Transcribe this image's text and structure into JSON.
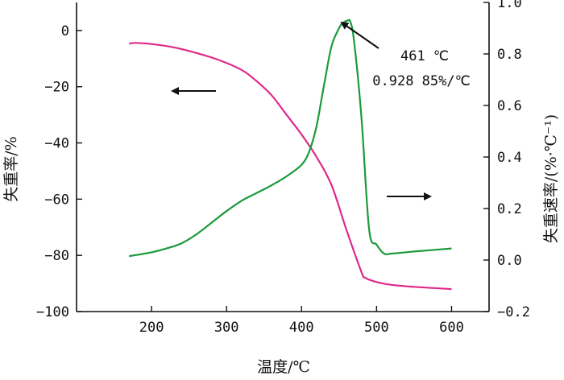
{
  "chart_data": {
    "type": "line",
    "xlabel": "温度/℃",
    "ylabel_left": "失重率/%",
    "ylabel_right": "失重速率/(%·℃⁻¹)",
    "xlim": [
      100,
      650
    ],
    "ylim_left": [
      -100,
      10
    ],
    "ylim_right": [
      -0.2,
      1.0
    ],
    "x_ticks": [
      200,
      300,
      400,
      500,
      600
    ],
    "y_left_ticks": [
      0,
      -20,
      -40,
      -60,
      -80,
      -100
    ],
    "y_right_ticks": [
      1.0,
      0.8,
      0.6,
      0.4,
      0.2,
      0.0,
      -0.2
    ],
    "x_tick_labels": [
      "200",
      "300",
      "400",
      "500",
      "600"
    ],
    "y_left_tick_labels": [
      "0",
      "−20",
      "−40",
      "−60",
      "−80",
      "−100"
    ],
    "y_right_tick_labels": [
      "1.0",
      "0.8",
      "0.6",
      "0.4",
      "0.2",
      "0.0",
      "−0.2"
    ],
    "grid": false,
    "series": [
      {
        "axis": "left",
        "color": "#e0288a",
        "x": [
          170,
          180,
          200,
          230,
          260,
          290,
          320,
          340,
          360,
          380,
          400,
          420,
          440,
          460,
          480,
          485,
          500,
          520,
          550,
          600
        ],
        "y": [
          -4.6,
          -4.4,
          -4.8,
          -6.0,
          -8.0,
          -10.5,
          -14.0,
          -18.0,
          -23.0,
          -30.0,
          -37.0,
          -45.0,
          -55.0,
          -71.0,
          -86.0,
          -88.0,
          -89.5,
          -90.5,
          -91.2,
          -92.0
        ]
      },
      {
        "axis": "right",
        "color": "#1a9a3a",
        "x": [
          170,
          200,
          220,
          240,
          260,
          280,
          300,
          320,
          340,
          360,
          380,
          400,
          410,
          420,
          430,
          440,
          450,
          455,
          461,
          465,
          470,
          480,
          490,
          500,
          510,
          520,
          550,
          600
        ],
        "y": [
          0.015,
          0.03,
          0.045,
          0.065,
          0.1,
          0.145,
          0.19,
          0.23,
          0.26,
          0.29,
          0.325,
          0.37,
          0.42,
          0.52,
          0.68,
          0.83,
          0.9,
          0.92,
          0.929,
          0.925,
          0.85,
          0.55,
          0.12,
          0.06,
          0.025,
          0.025,
          0.033,
          0.045
        ]
      }
    ],
    "annotations": {
      "peak_temp": "461 ℃",
      "peak_rate": "0.928 85%/℃"
    }
  },
  "colors": {
    "mass_loss": "#e0288a",
    "rate": "#1a9a3a",
    "axis": "#111111"
  }
}
